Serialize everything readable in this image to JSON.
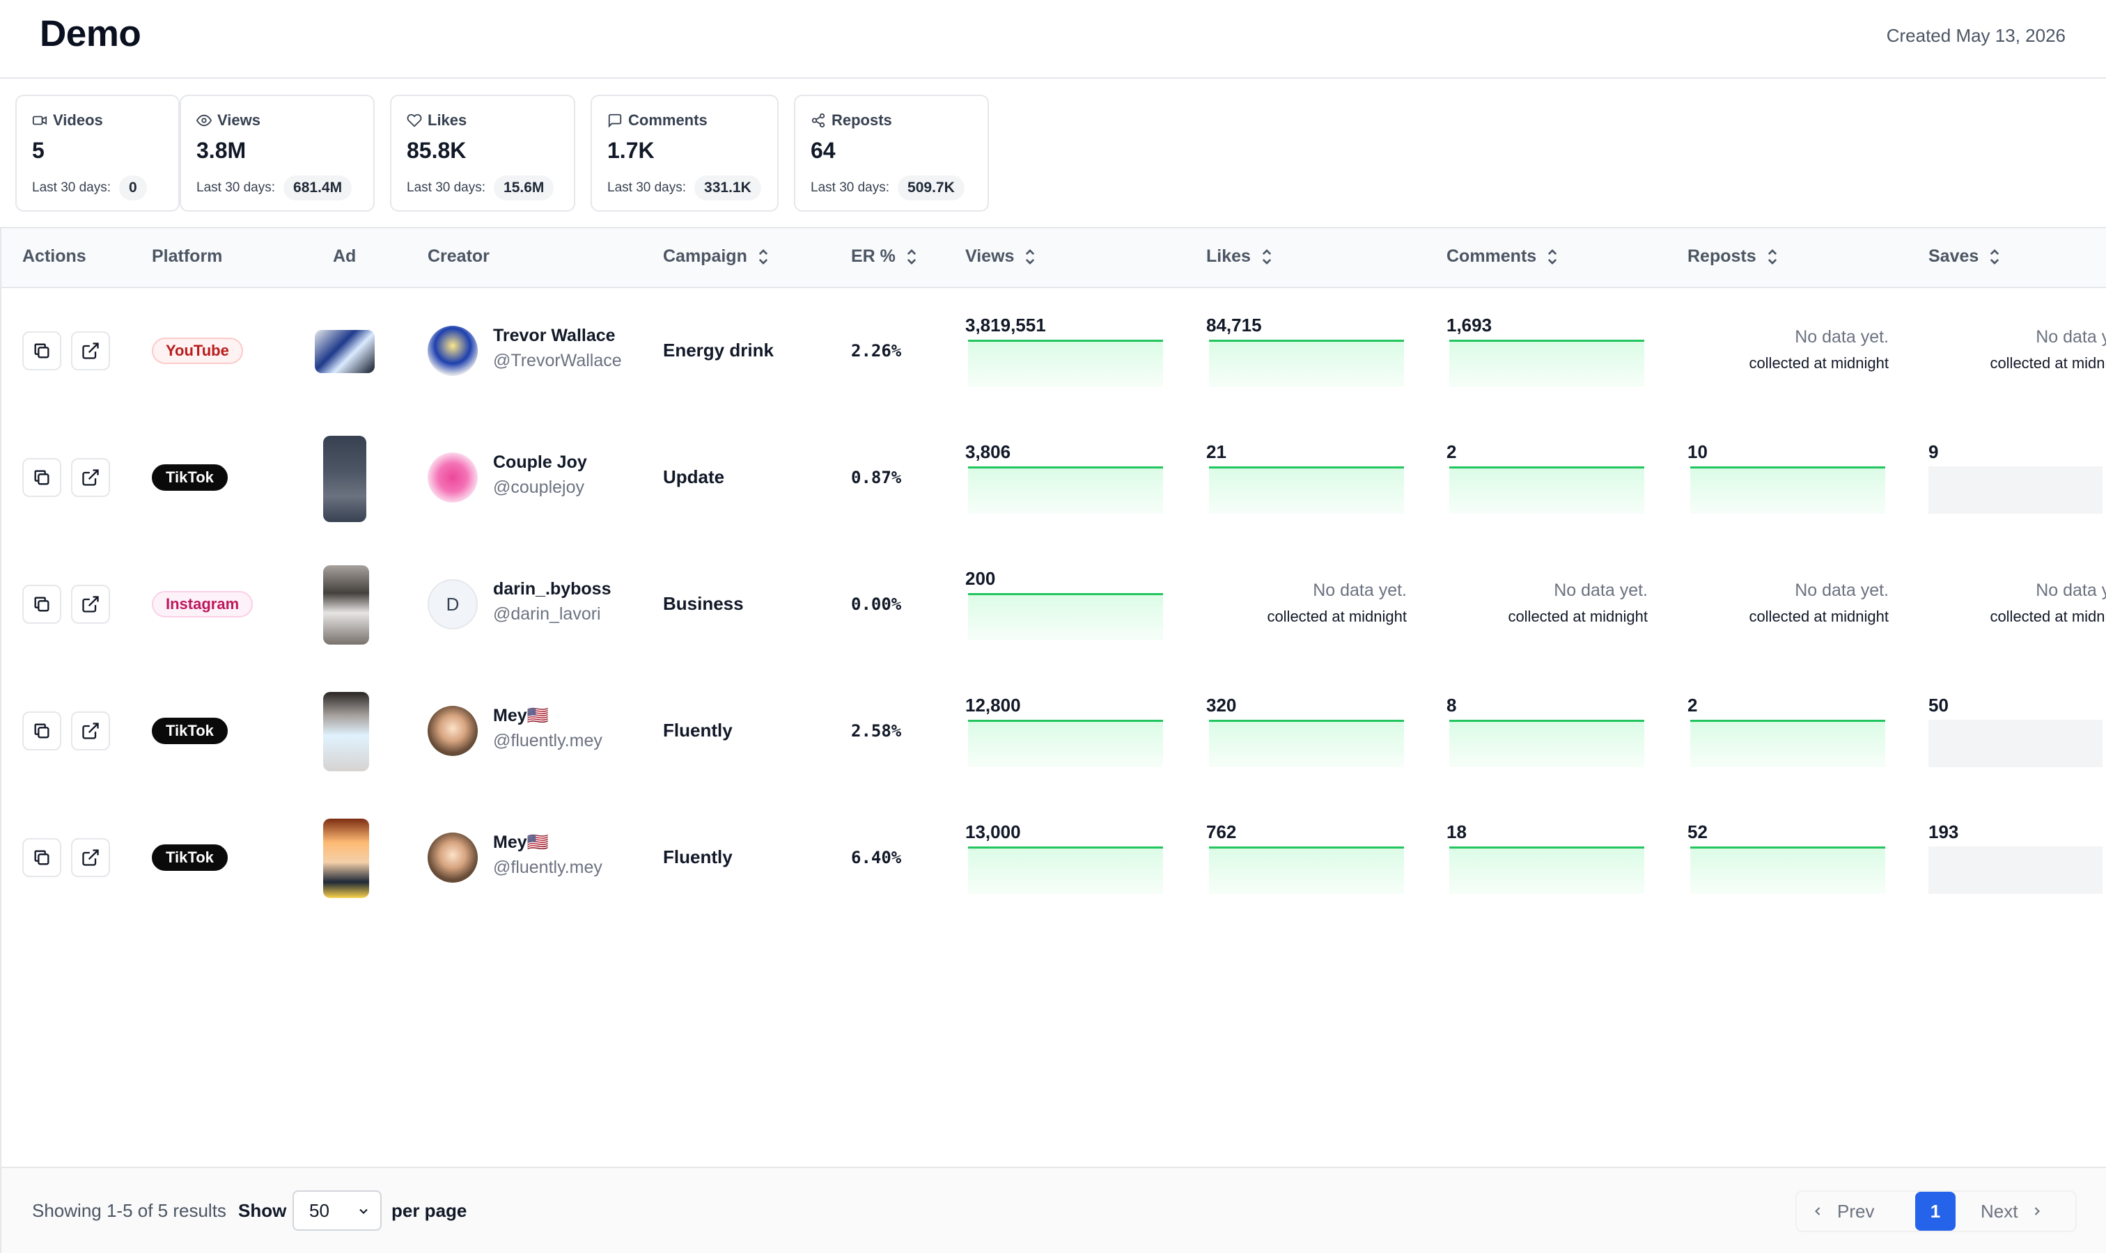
{
  "header": {
    "title": "Demo",
    "created": "Created May 13, 2026"
  },
  "stats": [
    {
      "icon": "video-icon",
      "label": "Videos",
      "value": "5",
      "sub_label": "Last 30 days:",
      "sub_value": "0"
    },
    {
      "icon": "eye-icon",
      "label": "Views",
      "value": "3.8M",
      "sub_label": "Last 30 days:",
      "sub_value": "681.4M"
    },
    {
      "icon": "heart-icon",
      "label": "Likes",
      "value": "85.8K",
      "sub_label": "Last 30 days:",
      "sub_value": "15.6M"
    },
    {
      "icon": "comment-icon",
      "label": "Comments",
      "value": "1.7K",
      "sub_label": "Last 30 days:",
      "sub_value": "331.1K"
    },
    {
      "icon": "share-icon",
      "label": "Reposts",
      "value": "64",
      "sub_label": "Last 30 days:",
      "sub_value": "509.7K"
    }
  ],
  "table": {
    "columns": {
      "actions": "Actions",
      "platform": "Platform",
      "ad": "Ad",
      "creator": "Creator",
      "campaign": "Campaign",
      "er": "ER %",
      "views": "Views",
      "likes": "Likes",
      "comments": "Comments",
      "reposts": "Reposts",
      "saves": "Saves"
    },
    "no_data": "No data yet.",
    "no_data_sub": "collected at midnight",
    "rows": [
      {
        "platform": "YouTube",
        "creator_name": "Trevor Wallace",
        "creator_handle": "@TrevorWallace",
        "campaign": "Energy drink",
        "er": "2.26%",
        "views": "3,819,551",
        "likes": "84,715",
        "comments": "1,693",
        "reposts": null,
        "saves": null
      },
      {
        "platform": "TikTok",
        "creator_name": "Couple Joy",
        "creator_handle": "@couplejoy",
        "campaign": "Update",
        "er": "0.87%",
        "views": "3,806",
        "likes": "21",
        "comments": "2",
        "reposts": "10",
        "saves": "9"
      },
      {
        "platform": "Instagram",
        "creator_name": "darin_.byboss",
        "creator_handle": "@darin_lavori",
        "avatar_letter": "D",
        "campaign": "Business",
        "er": "0.00%",
        "views": "200",
        "likes": null,
        "comments": null,
        "reposts": null,
        "saves": null
      },
      {
        "platform": "TikTok",
        "creator_name": "Mey🇺🇸",
        "creator_handle": "@fluently.mey",
        "campaign": "Fluently",
        "er": "2.58%",
        "views": "12,800",
        "likes": "320",
        "comments": "8",
        "reposts": "2",
        "saves": "50"
      },
      {
        "platform": "TikTok",
        "creator_name": "Mey🇺🇸",
        "creator_handle": "@fluently.mey",
        "campaign": "Fluently",
        "er": "6.40%",
        "views": "13,000",
        "likes": "762",
        "comments": "18",
        "reposts": "52",
        "saves": "193"
      }
    ]
  },
  "footer": {
    "showing": "Showing 1-5 of 5 results",
    "show_label": "Show",
    "per_page_value": "50",
    "per_page_label": "per page",
    "prev": "Prev",
    "page": "1",
    "next": "Next"
  }
}
